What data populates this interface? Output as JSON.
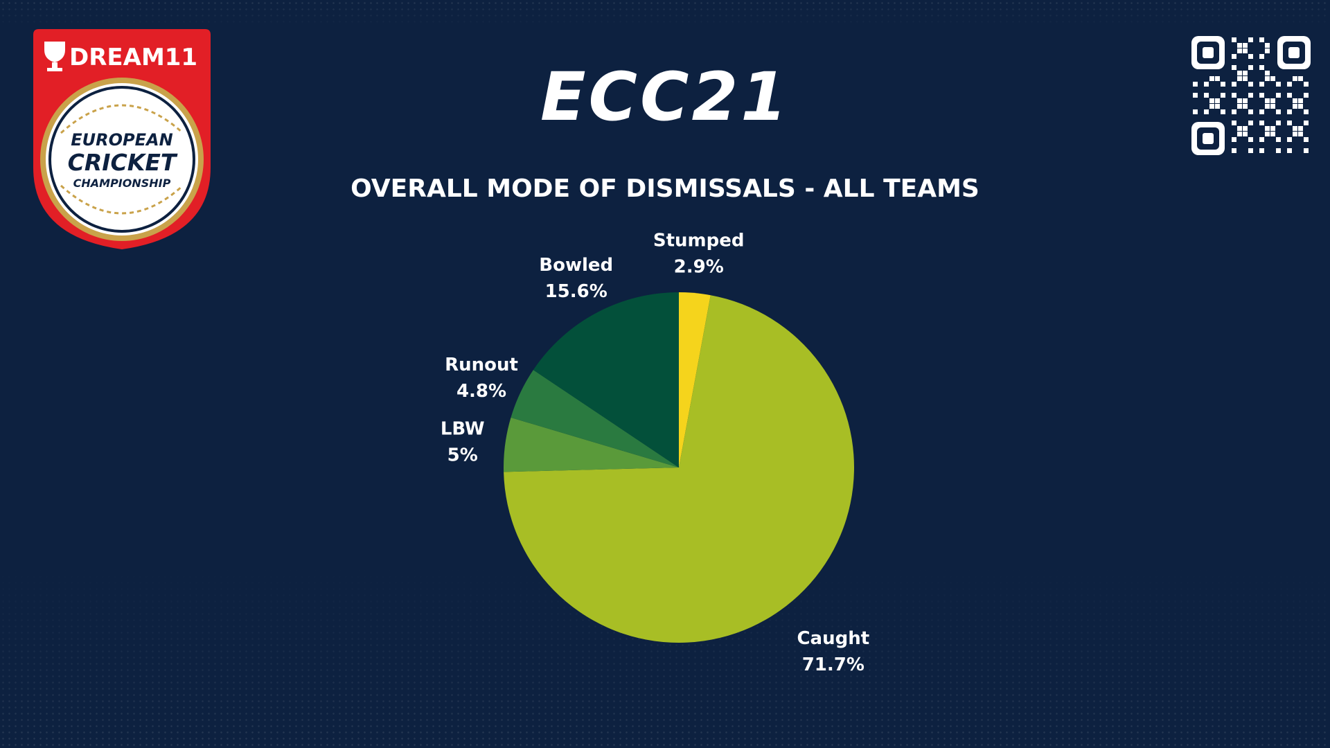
{
  "header": {
    "brand_title": "ECC21",
    "logo": {
      "sponsor": "DREAM11",
      "line1": "EUROPEAN",
      "line2": "CRICKET",
      "line3": "CHAMPIONSHIP"
    }
  },
  "qr_icon": "qr-code-icon",
  "colors": {
    "background": "#0d2140",
    "logo_red": "#e21f26"
  },
  "chart_data": {
    "type": "pie",
    "title": "OVERALL MODE OF DISMISSALS - ALL TEAMS",
    "start_angle_deg": 0,
    "direction": "clockwise",
    "slices": [
      {
        "label": "Stumped",
        "value": 2.9,
        "display": "2.9%",
        "color": "#f5d41c"
      },
      {
        "label": "Caught",
        "value": 71.7,
        "display": "71.7%",
        "color": "#a8be25"
      },
      {
        "label": "LBW",
        "value": 5,
        "display": "5%",
        "color": "#5a9a3a"
      },
      {
        "label": "Runout",
        "value": 4.8,
        "display": "4.8%",
        "color": "#2a7a40"
      },
      {
        "label": "Bowled",
        "value": 15.6,
        "display": "15.6%",
        "color": "#03503a"
      }
    ]
  }
}
